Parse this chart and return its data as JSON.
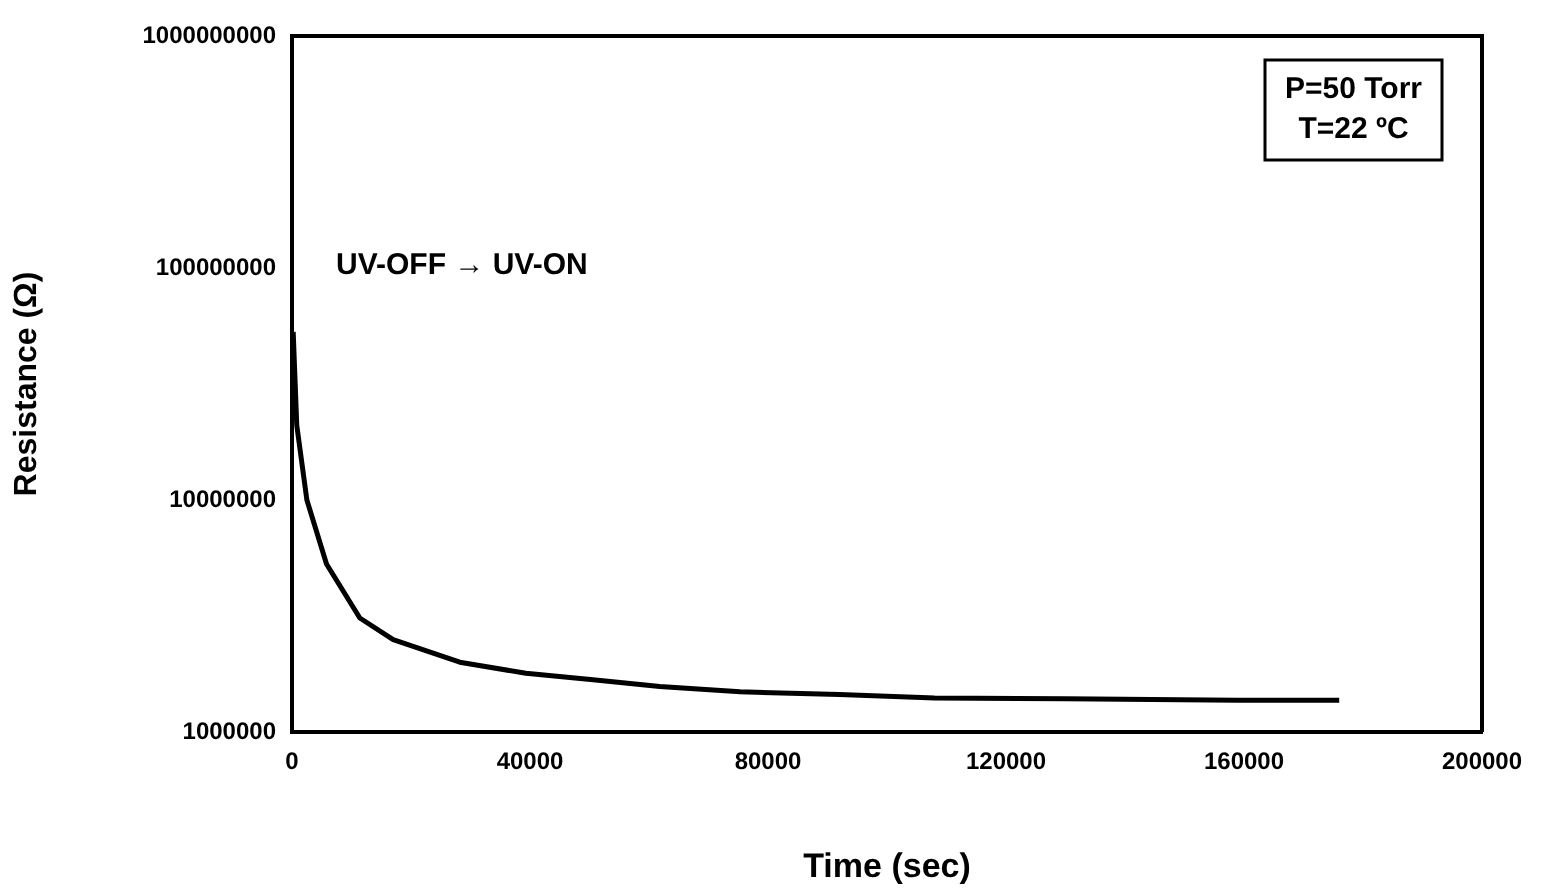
{
  "chart_data": {
    "type": "line",
    "xlabel": "Time (sec)",
    "ylabel": "Resistance (Ω)",
    "x": [
      200,
      800,
      2500,
      5800,
      11400,
      17000,
      28200,
      39300,
      50600,
      61800,
      75300,
      92000,
      108000,
      130000,
      159000,
      176000
    ],
    "series": [
      {
        "color": "#000000",
        "values": [
          53000000,
          21000000,
          10000000,
          5300000,
          3100000,
          2500000,
          2000000,
          1790000,
          1680000,
          1570000,
          1490000,
          1450000,
          1400000,
          1390000,
          1370000,
          1370000
        ]
      }
    ],
    "log": "y",
    "xlim": [
      0,
      200000
    ],
    "xticks": [
      0,
      40000,
      80000,
      120000,
      160000,
      200000
    ],
    "ylim": [
      1000000,
      1000000000
    ],
    "yticks": [
      1000000,
      10000000,
      100000000,
      1000000000
    ],
    "grid": false,
    "legend": false,
    "marker": "none",
    "line_style": "solid",
    "annotations": [
      "UV-OFF → UV-ON",
      "P=50 Torr\nT=22 ºC"
    ]
  }
}
